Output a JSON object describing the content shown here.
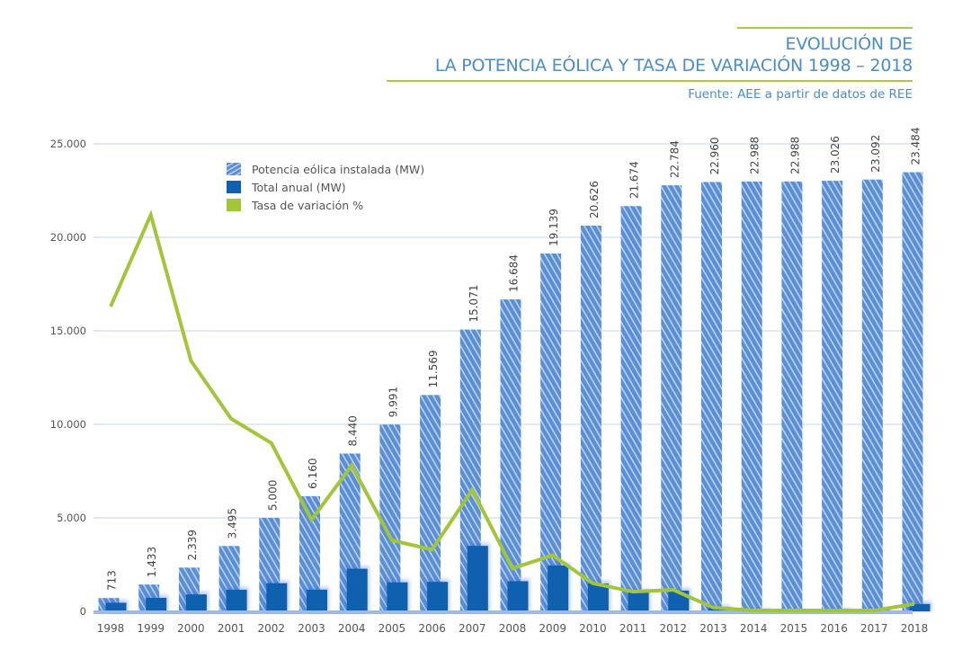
{
  "header": {
    "title_line1": "EVOLUCIÓN DE",
    "title_line2": "LA POTENCIA EÓLICA Y TASA DE VARIACIÓN 1998 – 2018",
    "source": "Fuente: AEE a partir de datos de REE"
  },
  "legend": {
    "items": [
      {
        "label": "Potencia eólica instalada (MW)"
      },
      {
        "label": "Total anual (MW)"
      },
      {
        "label": "Tasa de variación %"
      }
    ]
  },
  "colors": {
    "installed": "#5a8fd8",
    "installed_stripe": "#bcd2f0",
    "annual": "#1060b0",
    "rate": "#a3c53a",
    "grid": "#c5d3ea",
    "title": "#4a8ccc",
    "rule": "#a9c94a"
  },
  "chart_data": {
    "type": "bar",
    "title": "EVOLUCIÓN DE LA POTENCIA EÓLICA Y TASA DE VARIACIÓN 1998 – 2018",
    "subtitle": "Fuente: AEE a partir de datos de REE",
    "xlabel": "",
    "ylabel": "",
    "ylim": [
      0,
      25000
    ],
    "yticks": [
      0,
      5000,
      10000,
      15000,
      20000,
      25000
    ],
    "ytick_labels": [
      "0",
      "5.000",
      "10.000",
      "15.000",
      "20.000",
      "25.000"
    ],
    "grid": true,
    "legend_position": "top-left",
    "categories": [
      "1998",
      "1999",
      "2000",
      "2001",
      "2002",
      "2003",
      "2004",
      "2005",
      "2006",
      "2007",
      "2008",
      "2009",
      "2010",
      "2011",
      "2012",
      "2013",
      "2014",
      "2015",
      "2016",
      "2017",
      "2018"
    ],
    "series": [
      {
        "name": "Potencia eólica instalada (MW)",
        "type": "bar",
        "values": [
          713,
          1433,
          2339,
          3495,
          5000,
          6160,
          8440,
          9991,
          11569,
          15071,
          16684,
          19139,
          20626,
          21674,
          22784,
          22960,
          22988,
          22988,
          23026,
          23092,
          23484
        ],
        "labels": [
          "713",
          "1.433",
          "2.339",
          "3.495",
          "5.000",
          "6.160",
          "8.440",
          "9.991",
          "11.569",
          "15.071",
          "16.684",
          "19.139",
          "20.626",
          "21.674",
          "22.784",
          "22.960",
          "22.988",
          "22.988",
          "23.026",
          "23.092",
          "23.484"
        ]
      },
      {
        "name": "Total anual (MW)",
        "type": "bar",
        "values": [
          460,
          720,
          906,
          1156,
          1505,
          1160,
          2280,
          1551,
          1578,
          3502,
          1613,
          2455,
          1487,
          1048,
          1110,
          176,
          28,
          0,
          38,
          66,
          392
        ]
      },
      {
        "name": "Tasa de variación %",
        "type": "line",
        "values": [
          16300,
          21200,
          13400,
          10300,
          9000,
          4900,
          7800,
          3800,
          3300,
          6500,
          2300,
          3000,
          1500,
          1050,
          1150,
          200,
          0,
          0,
          0,
          0,
          400
        ]
      }
    ]
  }
}
